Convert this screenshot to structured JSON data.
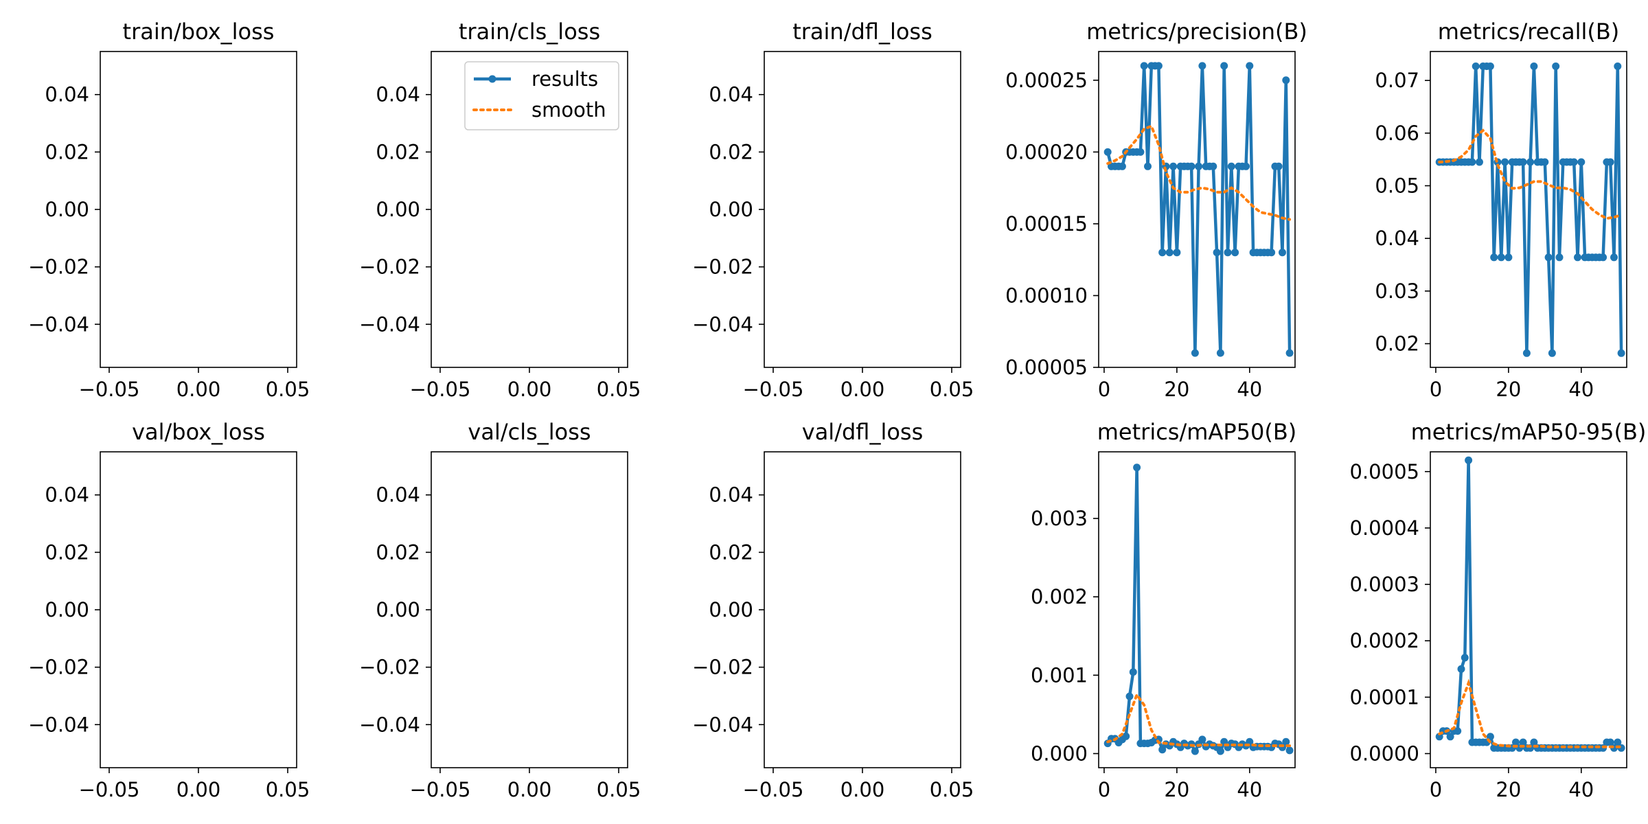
{
  "figure": {
    "smooth_color": "#ff7f0e",
    "results_color": "#1f77b4"
  },
  "legend": {
    "results_label": "results",
    "smooth_label": "smooth",
    "location": "upper-right of train/cls_loss panel"
  },
  "chart_data": [
    {
      "type": "line",
      "title": "train/box_loss",
      "xlim": [
        -0.055,
        0.055
      ],
      "ylim": [
        -0.055,
        0.055
      ],
      "xticks": [
        "−0.05",
        "0.00",
        "0.05"
      ],
      "xtick_values": [
        -0.05,
        0,
        0.05
      ],
      "yticks": [
        "−0.04",
        "−0.02",
        "0.00",
        "0.02",
        "0.04"
      ],
      "ytick_values": [
        -0.04,
        -0.02,
        0,
        0.02,
        0.04
      ],
      "series": []
    },
    {
      "type": "line",
      "title": "train/cls_loss",
      "xlim": [
        -0.055,
        0.055
      ],
      "ylim": [
        -0.055,
        0.055
      ],
      "xticks": [
        "−0.05",
        "0.00",
        "0.05"
      ],
      "xtick_values": [
        -0.05,
        0,
        0.05
      ],
      "yticks": [
        "−0.04",
        "−0.02",
        "0.00",
        "0.02",
        "0.04"
      ],
      "ytick_values": [
        -0.04,
        -0.02,
        0,
        0.02,
        0.04
      ],
      "legend": true,
      "series": []
    },
    {
      "type": "line",
      "title": "train/dfl_loss",
      "xlim": [
        -0.055,
        0.055
      ],
      "ylim": [
        -0.055,
        0.055
      ],
      "xticks": [
        "−0.05",
        "0.00",
        "0.05"
      ],
      "xtick_values": [
        -0.05,
        0,
        0.05
      ],
      "yticks": [
        "−0.04",
        "−0.02",
        "0.00",
        "0.02",
        "0.04"
      ],
      "ytick_values": [
        -0.04,
        -0.02,
        0,
        0.02,
        0.04
      ],
      "series": []
    },
    {
      "type": "line",
      "title": "metrics/precision(B)",
      "xlim": [
        -1.5,
        52.5
      ],
      "ylim": [
        5e-05,
        0.00027
      ],
      "xticks": [
        "0",
        "20",
        "40"
      ],
      "xtick_values": [
        0,
        20,
        40
      ],
      "yticks": [
        "0.00005",
        "0.00010",
        "0.00015",
        "0.00020",
        "0.00025"
      ],
      "ytick_values": [
        5e-05,
        0.0001,
        0.00015,
        0.0002,
        0.00025
      ],
      "series": [
        {
          "name": "results",
          "x": [
            1,
            2,
            3,
            4,
            5,
            6,
            7,
            8,
            9,
            10,
            11,
            12,
            13,
            14,
            15,
            16,
            17,
            18,
            19,
            20,
            21,
            22,
            23,
            24,
            25,
            26,
            27,
            28,
            29,
            30,
            31,
            32,
            33,
            34,
            35,
            36,
            37,
            38,
            39,
            40,
            41,
            42,
            43,
            44,
            45,
            46,
            47,
            48,
            49,
            50,
            51
          ],
          "y": [
            0.0002,
            0.00019,
            0.00019,
            0.00019,
            0.00019,
            0.0002,
            0.0002,
            0.0002,
            0.0002,
            0.0002,
            0.00026,
            0.00019,
            0.00026,
            0.00026,
            0.00026,
            0.00013,
            0.00019,
            0.00013,
            0.00019,
            0.00013,
            0.00019,
            0.00019,
            0.00019,
            0.00019,
            6e-05,
            0.00019,
            0.00026,
            0.00019,
            0.00019,
            0.00019,
            0.00013,
            6e-05,
            0.00026,
            0.00013,
            0.00019,
            0.00013,
            0.00019,
            0.00019,
            0.00019,
            0.00026,
            0.00013,
            0.00013,
            0.00013,
            0.00013,
            0.00013,
            0.00013,
            0.00019,
            0.00019,
            0.00013,
            0.00025,
            6e-05
          ]
        },
        {
          "name": "smooth",
          "x": [
            1,
            3,
            5,
            7,
            9,
            11,
            13,
            15,
            17,
            19,
            21,
            23,
            25,
            27,
            29,
            31,
            33,
            35,
            37,
            39,
            41,
            43,
            45,
            47,
            49,
            51
          ],
          "y": [
            0.000192,
            0.000194,
            0.000197,
            0.000203,
            0.000209,
            0.000216,
            0.000218,
            0.000205,
            0.000186,
            0.000175,
            0.000172,
            0.000172,
            0.000174,
            0.000175,
            0.000174,
            0.000172,
            0.000172,
            0.000175,
            0.000172,
            0.000167,
            0.000162,
            0.000158,
            0.000157,
            0.000156,
            0.000154,
            0.000153
          ]
        }
      ]
    },
    {
      "type": "line",
      "title": "metrics/recall(B)",
      "xlim": [
        -1.5,
        52.5
      ],
      "ylim": [
        0.0155,
        0.0755
      ],
      "xticks": [
        "0",
        "20",
        "40"
      ],
      "xtick_values": [
        0,
        20,
        40
      ],
      "yticks": [
        "0.02",
        "0.03",
        "0.04",
        "0.05",
        "0.06",
        "0.07"
      ],
      "ytick_values": [
        0.02,
        0.03,
        0.04,
        0.05,
        0.06,
        0.07
      ],
      "series": [
        {
          "name": "results",
          "x": [
            1,
            2,
            3,
            4,
            5,
            6,
            7,
            8,
            9,
            10,
            11,
            12,
            13,
            14,
            15,
            16,
            17,
            18,
            19,
            20,
            21,
            22,
            23,
            24,
            25,
            26,
            27,
            28,
            29,
            30,
            31,
            32,
            33,
            34,
            35,
            36,
            37,
            38,
            39,
            40,
            41,
            42,
            43,
            44,
            45,
            46,
            47,
            48,
            49,
            50,
            51
          ],
          "y": [
            0.0545,
            0.0545,
            0.0545,
            0.0545,
            0.0545,
            0.0545,
            0.0545,
            0.0545,
            0.0545,
            0.0545,
            0.0727,
            0.0545,
            0.0727,
            0.0727,
            0.0727,
            0.0364,
            0.0545,
            0.0364,
            0.0545,
            0.0364,
            0.0545,
            0.0545,
            0.0545,
            0.0545,
            0.0182,
            0.0545,
            0.0727,
            0.0545,
            0.0545,
            0.0545,
            0.0364,
            0.0182,
            0.0727,
            0.0364,
            0.0545,
            0.0545,
            0.0545,
            0.0545,
            0.0364,
            0.0545,
            0.0364,
            0.0364,
            0.0364,
            0.0364,
            0.0364,
            0.0364,
            0.0545,
            0.0545,
            0.0364,
            0.0727,
            0.0182
          ]
        },
        {
          "name": "smooth",
          "x": [
            1,
            3,
            5,
            7,
            9,
            11,
            13,
            15,
            17,
            19,
            21,
            23,
            25,
            27,
            29,
            31,
            33,
            35,
            37,
            39,
            41,
            43,
            45,
            47,
            49,
            51
          ],
          "y": [
            0.0545,
            0.0546,
            0.0548,
            0.0555,
            0.0568,
            0.0594,
            0.0605,
            0.059,
            0.054,
            0.0508,
            0.0495,
            0.0496,
            0.0502,
            0.0508,
            0.0508,
            0.0502,
            0.0496,
            0.0496,
            0.0493,
            0.0485,
            0.047,
            0.0455,
            0.0445,
            0.0438,
            0.044,
            0.0445
          ]
        }
      ]
    },
    {
      "type": "line",
      "title": "val/box_loss",
      "xlim": [
        -0.055,
        0.055
      ],
      "ylim": [
        -0.055,
        0.055
      ],
      "xticks": [
        "−0.05",
        "0.00",
        "0.05"
      ],
      "xtick_values": [
        -0.05,
        0,
        0.05
      ],
      "yticks": [
        "−0.04",
        "−0.02",
        "0.00",
        "0.02",
        "0.04"
      ],
      "ytick_values": [
        -0.04,
        -0.02,
        0,
        0.02,
        0.04
      ],
      "series": []
    },
    {
      "type": "line",
      "title": "val/cls_loss",
      "xlim": [
        -0.055,
        0.055
      ],
      "ylim": [
        -0.055,
        0.055
      ],
      "xticks": [
        "−0.05",
        "0.00",
        "0.05"
      ],
      "xtick_values": [
        -0.05,
        0,
        0.05
      ],
      "yticks": [
        "−0.04",
        "−0.02",
        "0.00",
        "0.02",
        "0.04"
      ],
      "ytick_values": [
        -0.04,
        -0.02,
        0,
        0.02,
        0.04
      ],
      "series": []
    },
    {
      "type": "line",
      "title": "val/dfl_loss",
      "xlim": [
        -0.055,
        0.055
      ],
      "ylim": [
        -0.055,
        0.055
      ],
      "xticks": [
        "−0.05",
        "0.00",
        "0.05"
      ],
      "xtick_values": [
        -0.05,
        0,
        0.05
      ],
      "yticks": [
        "−0.04",
        "−0.02",
        "0.00",
        "0.02",
        "0.04"
      ],
      "ytick_values": [
        -0.04,
        -0.02,
        0,
        0.02,
        0.04
      ],
      "series": []
    },
    {
      "type": "line",
      "title": "metrics/mAP50(B)",
      "xlim": [
        -1.5,
        52.5
      ],
      "ylim": [
        -0.00018,
        0.00385
      ],
      "xticks": [
        "0",
        "20",
        "40"
      ],
      "xtick_values": [
        0,
        20,
        40
      ],
      "yticks": [
        "0.000",
        "0.001",
        "0.002",
        "0.003"
      ],
      "ytick_values": [
        0,
        0.001,
        0.002,
        0.003
      ],
      "series": [
        {
          "name": "results",
          "x": [
            1,
            2,
            3,
            4,
            5,
            6,
            7,
            8,
            9,
            10,
            11,
            12,
            13,
            14,
            15,
            16,
            17,
            18,
            19,
            20,
            21,
            22,
            23,
            24,
            25,
            26,
            27,
            28,
            29,
            30,
            31,
            32,
            33,
            34,
            35,
            36,
            37,
            38,
            39,
            40,
            41,
            42,
            43,
            44,
            45,
            46,
            47,
            48,
            49,
            50,
            51
          ],
          "y": [
            0.00013,
            0.00019,
            0.00019,
            0.00014,
            0.00018,
            0.00022,
            0.00073,
            0.00104,
            0.00365,
            0.00013,
            0.00013,
            0.00013,
            0.00014,
            0.00017,
            0.00018,
            5e-05,
            0.00012,
            0.0001,
            0.00015,
            0.00012,
            8e-05,
            0.00013,
            0.0001,
            0.00012,
            3e-05,
            0.00012,
            0.00018,
            9e-05,
            0.00012,
            0.0001,
            8e-05,
            3e-05,
            0.00015,
            8e-05,
            0.00013,
            0.00012,
            8e-05,
            0.00012,
            0.0001,
            0.00015,
            8e-05,
            9e-05,
            9e-05,
            9e-05,
            9e-05,
            8e-05,
            0.00013,
            0.00012,
            8e-05,
            0.00015,
            4e-05
          ]
        },
        {
          "name": "smooth",
          "x": [
            1,
            3,
            5,
            7,
            9,
            11,
            13,
            15,
            17,
            19,
            21,
            23,
            25,
            27,
            29,
            31,
            33,
            35,
            37,
            39,
            41,
            43,
            45,
            47,
            49,
            51
          ],
          "y": [
            0.00015,
            0.00018,
            0.00025,
            0.0005,
            0.00075,
            0.00062,
            0.0003,
            0.00014,
            0.00013,
            0.00012,
            0.00011,
            0.00011,
            0.0001,
            0.00011,
            0.00011,
            0.00011,
            0.00011,
            0.00011,
            0.00011,
            0.00011,
            0.00011,
            0.0001,
            0.0001,
            0.0001,
            0.0001,
            0.0001
          ]
        }
      ]
    },
    {
      "type": "line",
      "title": "metrics/mAP50-95(B)",
      "xlim": [
        -1.5,
        52.5
      ],
      "ylim": [
        -2.5e-05,
        0.000535
      ],
      "xticks": [
        "0",
        "20",
        "40"
      ],
      "xtick_values": [
        0,
        20,
        40
      ],
      "yticks": [
        "0.0000",
        "0.0001",
        "0.0002",
        "0.0003",
        "0.0004",
        "0.0005"
      ],
      "ytick_values": [
        0,
        0.0001,
        0.0002,
        0.0003,
        0.0004,
        0.0005
      ],
      "series": [
        {
          "name": "results",
          "x": [
            1,
            2,
            3,
            4,
            5,
            6,
            7,
            8,
            9,
            10,
            11,
            12,
            13,
            14,
            15,
            16,
            17,
            18,
            19,
            20,
            21,
            22,
            23,
            24,
            25,
            26,
            27,
            28,
            29,
            30,
            31,
            32,
            33,
            34,
            35,
            36,
            37,
            38,
            39,
            40,
            41,
            42,
            43,
            44,
            45,
            46,
            47,
            48,
            49,
            50,
            51
          ],
          "y": [
            3e-05,
            4e-05,
            4e-05,
            3e-05,
            4e-05,
            4e-05,
            0.00015,
            0.00017,
            0.00052,
            2e-05,
            2e-05,
            2e-05,
            2e-05,
            2e-05,
            3e-05,
            1e-05,
            1e-05,
            1e-05,
            1e-05,
            1e-05,
            1e-05,
            2e-05,
            1e-05,
            2e-05,
            1e-05,
            1e-05,
            2e-05,
            1e-05,
            1e-05,
            1e-05,
            1e-05,
            1e-05,
            1e-05,
            1e-05,
            1e-05,
            1e-05,
            1e-05,
            1e-05,
            1e-05,
            1e-05,
            1e-05,
            1e-05,
            1e-05,
            1e-05,
            1e-05,
            1e-05,
            2e-05,
            2e-05,
            1e-05,
            2e-05,
            1e-05
          ]
        },
        {
          "name": "smooth",
          "x": [
            1,
            3,
            5,
            7,
            9,
            11,
            13,
            15,
            17,
            19,
            21,
            23,
            25,
            27,
            29,
            31,
            33,
            35,
            37,
            39,
            41,
            43,
            45,
            47,
            49,
            51
          ],
          "y": [
            3.5e-05,
            4e-05,
            4.5e-05,
            9e-05,
            0.000125,
            8e-05,
            3.5e-05,
            2e-05,
            1.5e-05,
            1.4e-05,
            1.3e-05,
            1.3e-05,
            1.3e-05,
            1.3e-05,
            1.3e-05,
            1.2e-05,
            1.2e-05,
            1.2e-05,
            1.2e-05,
            1.2e-05,
            1.2e-05,
            1.2e-05,
            1.2e-05,
            1.2e-05,
            1.2e-05,
            1.2e-05
          ]
        }
      ]
    }
  ]
}
